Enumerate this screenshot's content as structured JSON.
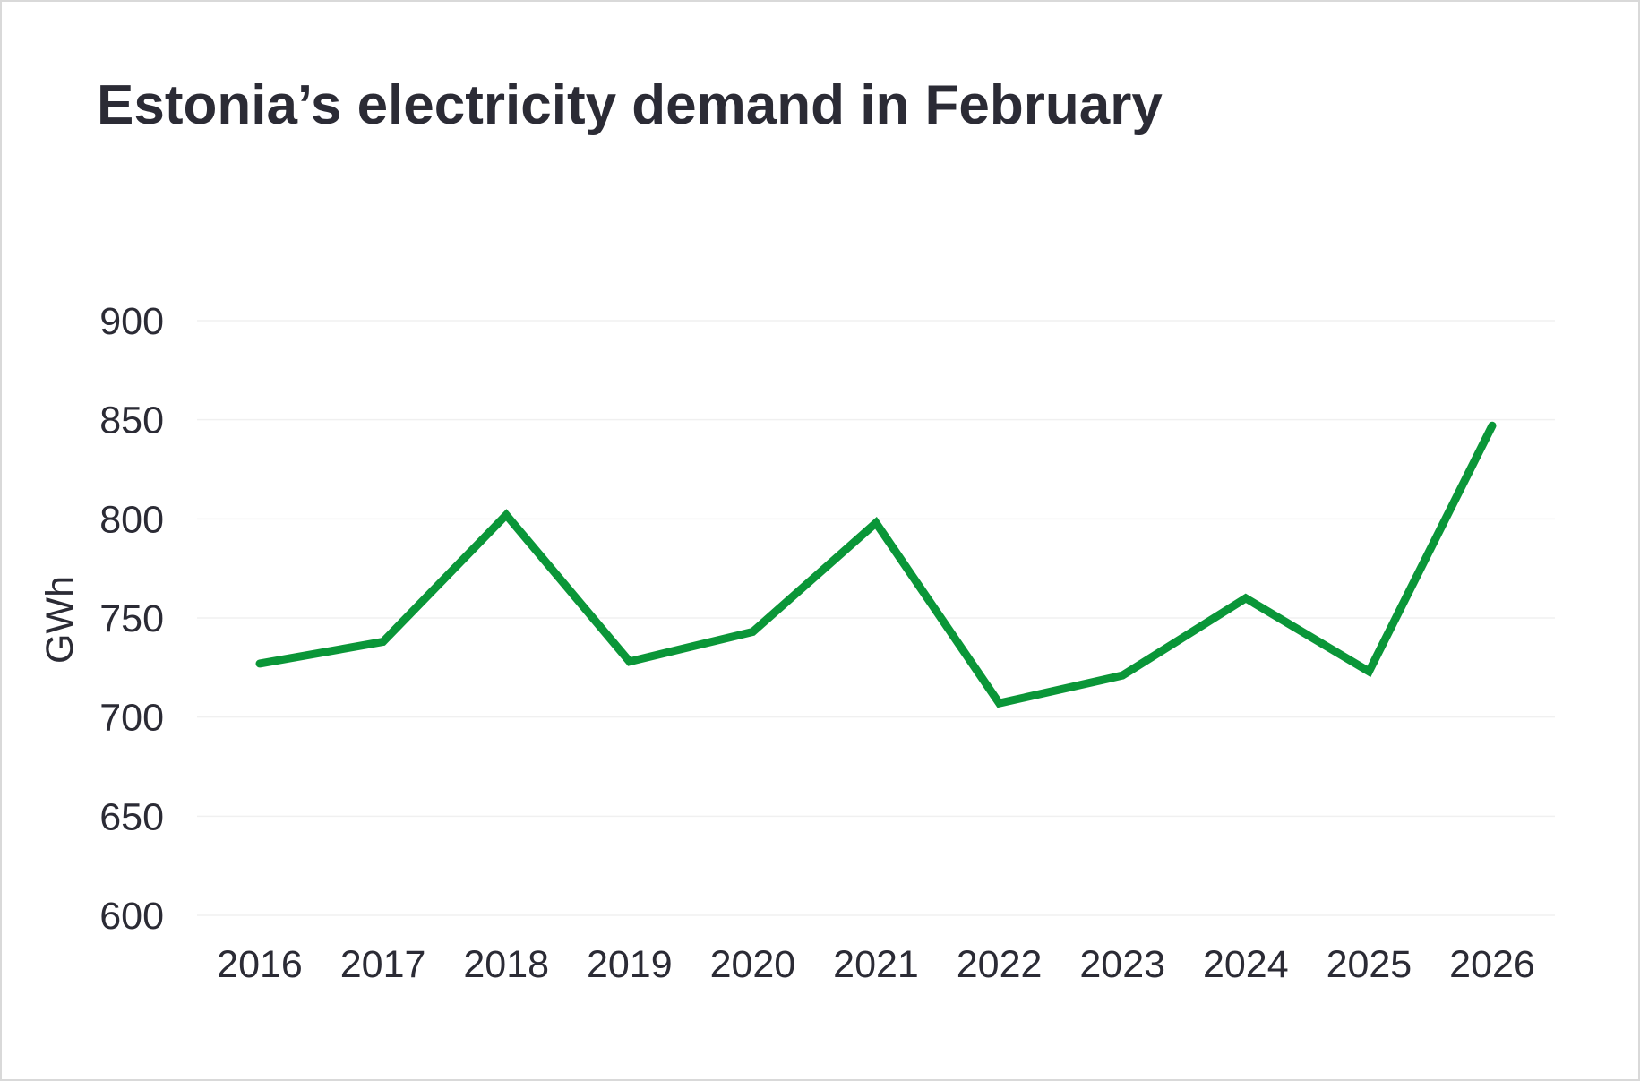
{
  "chart_data": {
    "type": "line",
    "title": "Estonia’s electricity demand in February",
    "xlabel": "",
    "ylabel": "GWh",
    "ylim": [
      600,
      900
    ],
    "yticks": [
      600,
      650,
      700,
      750,
      800,
      850,
      900
    ],
    "categories": [
      "2016",
      "2017",
      "2018",
      "2019",
      "2020",
      "2021",
      "2022",
      "2023",
      "2024",
      "2025",
      "2026"
    ],
    "series": [
      {
        "name": "Electricity demand",
        "color": "#0a9638",
        "values": [
          727,
          738,
          802,
          728,
          743,
          798,
          707,
          721,
          760,
          723,
          847
        ]
      }
    ],
    "grid": true,
    "legend": "none"
  }
}
